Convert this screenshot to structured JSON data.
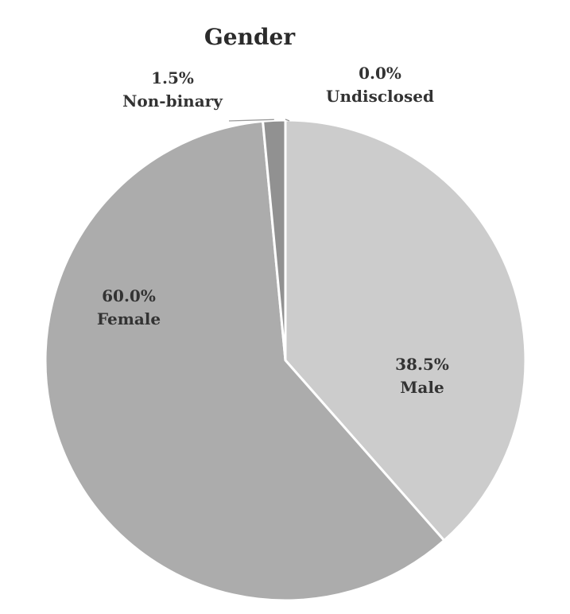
{
  "chart_data": {
    "type": "pie",
    "title": "Gender",
    "start_angle": "12 o'clock, clockwise",
    "slices": [
      {
        "name": "Male",
        "value": 38.5,
        "label": "38.5%",
        "color": "#cccccc"
      },
      {
        "name": "Female",
        "value": 60.0,
        "label": "60.0%",
        "color": "#acacac"
      },
      {
        "name": "Non-binary",
        "value": 1.5,
        "label": "1.5%",
        "color": "#919191"
      },
      {
        "name": "Undisclosed",
        "value": 0.0,
        "label": "0.0%",
        "color": "#bdbdbd"
      }
    ]
  }
}
